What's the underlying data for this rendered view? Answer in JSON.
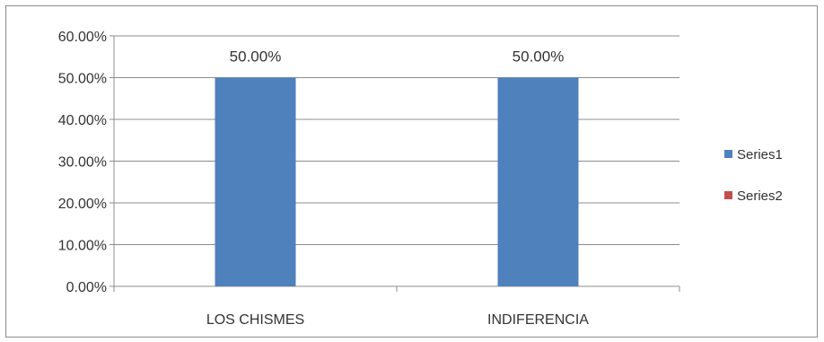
{
  "chart_data": {
    "type": "bar",
    "categories": [
      "LOS CHISMES",
      "INDIFERENCIA"
    ],
    "series": [
      {
        "name": "Series1",
        "values": [
          50,
          50
        ],
        "color": "#4f81bd"
      },
      {
        "name": "Series2",
        "values": [
          0,
          0
        ],
        "color": "#c0504d"
      }
    ],
    "data_labels": [
      "50.00%",
      "50.00%"
    ],
    "ylim": [
      0,
      60
    ],
    "yticks": [
      0,
      10,
      20,
      30,
      40,
      50,
      60
    ],
    "ytick_labels": [
      "0.00%",
      "10.00%",
      "20.00%",
      "30.00%",
      "40.00%",
      "50.00%",
      "60.00%"
    ],
    "grid": true,
    "legend": "right",
    "title": "",
    "xlabel": "",
    "ylabel": ""
  }
}
